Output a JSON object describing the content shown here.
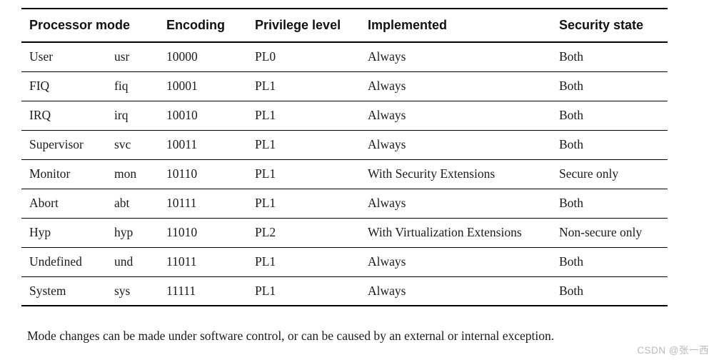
{
  "table": {
    "headers": {
      "processor_mode": "Processor mode",
      "encoding": "Encoding",
      "privilege_level": "Privilege level",
      "implemented": "Implemented",
      "security_state": "Security state"
    },
    "rows": [
      {
        "mode": "User",
        "abbr": "usr",
        "encoding": "10000",
        "privilege": "PL0",
        "implemented": "Always",
        "security": "Both"
      },
      {
        "mode": "FIQ",
        "abbr": "fiq",
        "encoding": "10001",
        "privilege": "PL1",
        "implemented": "Always",
        "security": "Both"
      },
      {
        "mode": "IRQ",
        "abbr": "irq",
        "encoding": "10010",
        "privilege": "PL1",
        "implemented": "Always",
        "security": "Both"
      },
      {
        "mode": "Supervisor",
        "abbr": "svc",
        "encoding": "10011",
        "privilege": "PL1",
        "implemented": "Always",
        "security": "Both"
      },
      {
        "mode": "Monitor",
        "abbr": "mon",
        "encoding": "10110",
        "privilege": "PL1",
        "implemented": "With Security Extensions",
        "security": "Secure only"
      },
      {
        "mode": "Abort",
        "abbr": "abt",
        "encoding": "10111",
        "privilege": "PL1",
        "implemented": "Always",
        "security": "Both"
      },
      {
        "mode": "Hyp",
        "abbr": "hyp",
        "encoding": "11010",
        "privilege": "PL2",
        "implemented": "With Virtualization Extensions",
        "security": "Non-secure only"
      },
      {
        "mode": "Undefined",
        "abbr": "und",
        "encoding": "11011",
        "privilege": "PL1",
        "implemented": "Always",
        "security": "Both"
      },
      {
        "mode": "System",
        "abbr": "sys",
        "encoding": "11111",
        "privilege": "PL1",
        "implemented": "Always",
        "security": "Both"
      }
    ]
  },
  "footer": {
    "note": "Mode changes can be made under software control, or can be caused by an external or internal exception."
  },
  "watermark": {
    "text": "CSDN @张一西",
    "color": "#b9b9b9"
  },
  "colors": {
    "background": "#ffffff",
    "text": "#1b1b1b",
    "border": "#000000"
  }
}
